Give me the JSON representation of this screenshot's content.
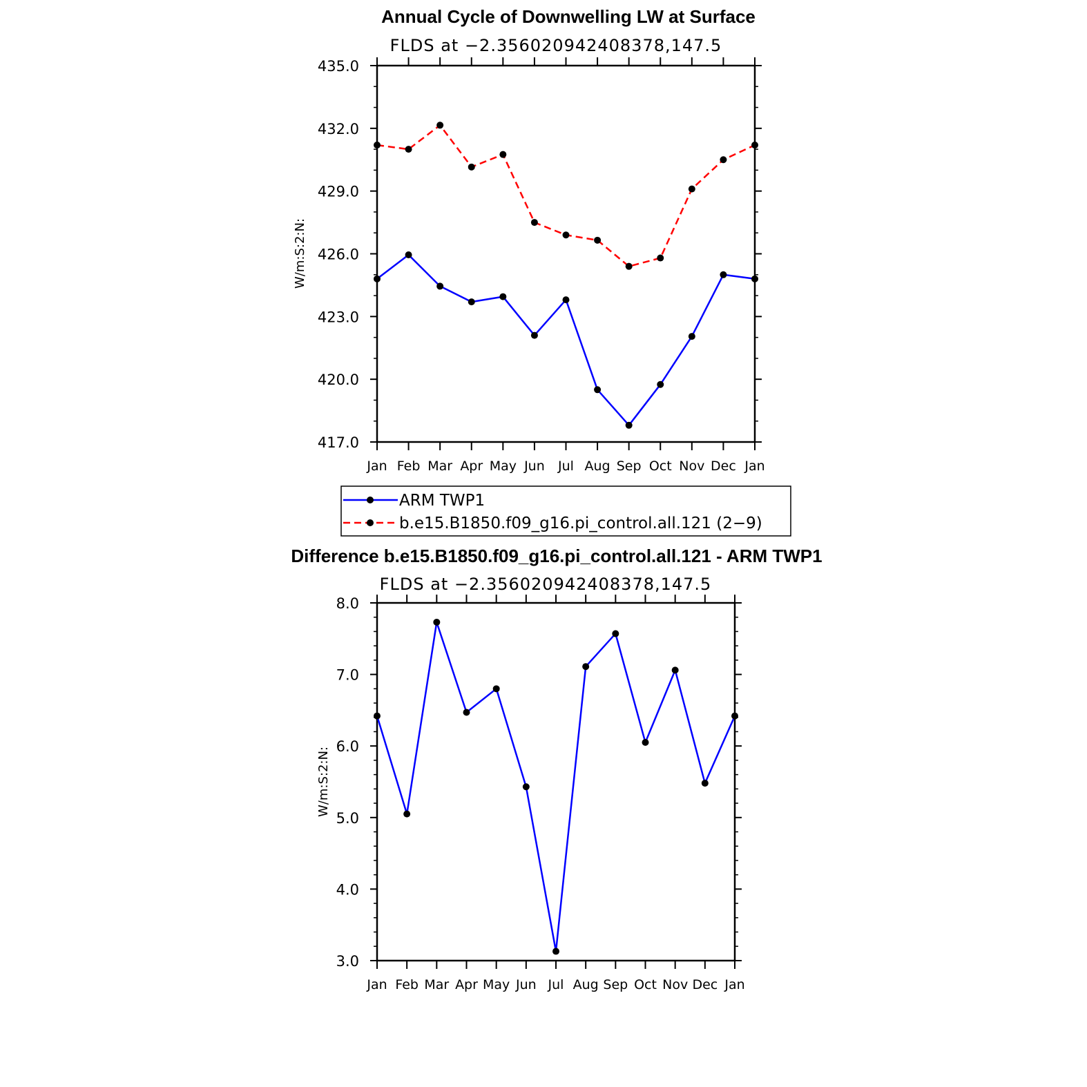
{
  "colors": {
    "obs": "#0000ff",
    "model": "#ff0000",
    "marker": "#000000"
  },
  "chart_data": [
    {
      "type": "line",
      "title": "Annual Cycle of Downwelling LW at Surface",
      "subtitle": "FLDS at −2.356020942408378,147.5",
      "ylabel": "W/m:S:2:N:",
      "xlabel": "",
      "categories": [
        "Jan",
        "Feb",
        "Mar",
        "Apr",
        "May",
        "Jun",
        "Jul",
        "Aug",
        "Sep",
        "Oct",
        "Nov",
        "Dec",
        "Jan"
      ],
      "ylim": [
        417.0,
        435.0
      ],
      "yticks": [
        "417.0",
        "420.0",
        "423.0",
        "426.0",
        "429.0",
        "432.0",
        "435.0"
      ],
      "legend_position": "bottom",
      "series": [
        {
          "name": "ARM TWP1",
          "color": "#0000ff",
          "style": "solid",
          "values": [
            424.8,
            425.95,
            424.45,
            423.7,
            423.95,
            422.1,
            423.8,
            419.5,
            417.8,
            419.75,
            422.05,
            425.0,
            424.8
          ]
        },
        {
          "name": "b.e15.B1850.f09_g16.pi_control.all.121 (2−9)",
          "color": "#ff0000",
          "style": "dashed",
          "values": [
            431.2,
            431.0,
            432.15,
            430.15,
            430.75,
            427.5,
            426.9,
            426.65,
            425.4,
            425.8,
            429.1,
            430.5,
            431.2
          ]
        }
      ]
    },
    {
      "type": "line",
      "title": "Difference b.e15.B1850.f09_g16.pi_control.all.121 - ARM TWP1",
      "subtitle": "FLDS at −2.356020942408378,147.5",
      "ylabel": "W/m:S:2:N:",
      "xlabel": "",
      "categories": [
        "Jan",
        "Feb",
        "Mar",
        "Apr",
        "May",
        "Jun",
        "Jul",
        "Aug",
        "Sep",
        "Oct",
        "Nov",
        "Dec",
        "Jan"
      ],
      "ylim": [
        3.0,
        8.0
      ],
      "yticks": [
        "3.0",
        "4.0",
        "5.0",
        "6.0",
        "7.0",
        "8.0"
      ],
      "series": [
        {
          "color": "#0000ff",
          "style": "solid",
          "values": [
            6.42,
            5.05,
            7.73,
            6.47,
            6.8,
            5.43,
            3.13,
            7.11,
            7.57,
            6.05,
            7.06,
            5.48,
            6.42
          ]
        }
      ]
    }
  ]
}
